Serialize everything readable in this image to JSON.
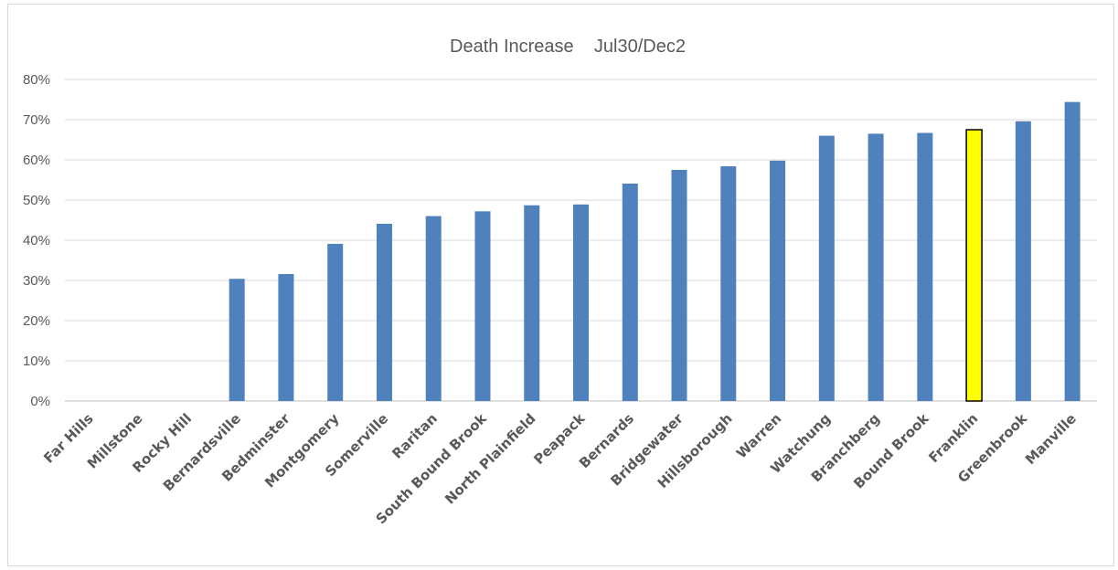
{
  "chart_data": {
    "type": "bar",
    "title": "Death Increase    Jul30/Dec2",
    "xlabel": "",
    "ylabel": "",
    "ylim": [
      0,
      0.8
    ],
    "ytick_values": [
      0,
      0.1,
      0.2,
      0.3,
      0.4,
      0.5,
      0.6,
      0.7,
      0.8
    ],
    "ytick_labels": [
      "0%",
      "10%",
      "20%",
      "30%",
      "40%",
      "50%",
      "60%",
      "70%",
      "80%"
    ],
    "grid": true,
    "legend": "none",
    "categories": [
      "Far Hills",
      "Millstone",
      "Rocky Hill",
      "Bernardsville",
      "Bedminster",
      "Montgomery",
      "Somerville",
      "Raritan",
      "South Bound Brook",
      "North Plainfield",
      "Peapack",
      "Bernards",
      "Bridgewater",
      "Hillsborough",
      "Warren",
      "Watchung",
      "Branchberg",
      "Bound Brook",
      "Franklin",
      "Greenbrook",
      "Manville"
    ],
    "values": [
      0,
      0,
      0,
      0.304,
      0.316,
      0.391,
      0.441,
      0.46,
      0.472,
      0.487,
      0.489,
      0.541,
      0.575,
      0.584,
      0.598,
      0.66,
      0.665,
      0.667,
      0.675,
      0.696,
      0.744
    ],
    "bar_color": "#4f81bd",
    "highlight_category": "Franklin",
    "highlight_color": "#ffff00",
    "highlight_stroke": "#000000"
  }
}
